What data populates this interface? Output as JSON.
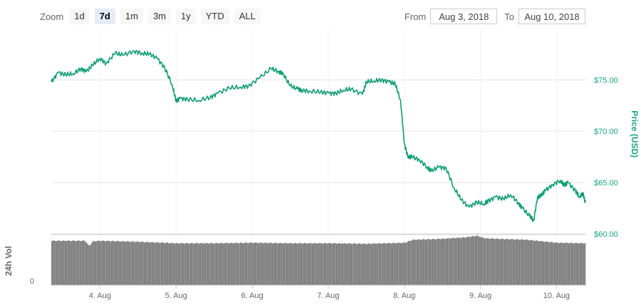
{
  "range_selector": {
    "zoom_label": "Zoom",
    "buttons": [
      "1d",
      "7d",
      "1m",
      "3m",
      "1y",
      "YTD",
      "ALL"
    ],
    "active": "7d",
    "from_label": "From",
    "from_value": "Aug 3, 2018",
    "to_label": "To",
    "to_value": "Aug 10, 2018"
  },
  "colors": {
    "line": "#0f9d74",
    "volume": "#7c7c7c",
    "grid": "#e6e6e6",
    "price_axis": "#1aa580"
  },
  "chart_data": {
    "type": "line",
    "x_unit": "date (days in August 2018)",
    "xlim": [
      3.36,
      10.38
    ],
    "x_tick_values": [
      4,
      5,
      6,
      7,
      8,
      9,
      10
    ],
    "x_tick_labels": [
      "4. Aug",
      "5. Aug",
      "6. Aug",
      "7. Aug",
      "8. Aug",
      "9. Aug",
      "10. Aug"
    ],
    "price": {
      "ylabel": "Price (USD)",
      "ylim": [
        60,
        80
      ],
      "y_ticks": [
        60,
        65,
        70,
        75
      ],
      "y_tick_labels": [
        "$60.00",
        "$65.00",
        "$70.00",
        "$75.00"
      ],
      "x": [
        3.36,
        3.45,
        3.55,
        3.65,
        3.75,
        3.82,
        3.9,
        4.0,
        4.08,
        4.2,
        4.3,
        4.45,
        4.55,
        4.65,
        4.75,
        4.85,
        4.95,
        5.0,
        5.05,
        5.15,
        5.3,
        5.45,
        5.55,
        5.7,
        5.85,
        5.95,
        6.1,
        6.25,
        6.35,
        6.4,
        6.5,
        6.6,
        6.65,
        6.75,
        6.9,
        7.0,
        7.1,
        7.2,
        7.3,
        7.45,
        7.5,
        7.6,
        7.7,
        7.8,
        7.88,
        7.95,
        8.0,
        8.05,
        8.1,
        8.2,
        8.3,
        8.35,
        8.45,
        8.55,
        8.65,
        8.75,
        8.85,
        8.95,
        9.05,
        9.1,
        9.2,
        9.3,
        9.4,
        9.5,
        9.55,
        9.65,
        9.7,
        9.75,
        9.8,
        9.85,
        9.95,
        10.05,
        10.1,
        10.15,
        10.25,
        10.3,
        10.35,
        10.38
      ],
      "y": [
        74.8,
        75.7,
        75.5,
        75.6,
        76.1,
        75.8,
        76.4,
        77.1,
        76.6,
        77.6,
        77.4,
        77.8,
        77.6,
        77.5,
        77.1,
        76.2,
        74.5,
        72.9,
        73.2,
        73.1,
        73.0,
        73.3,
        73.7,
        74.2,
        74.3,
        74.4,
        75.2,
        76.1,
        75.8,
        75.7,
        74.4,
        74.1,
        74.0,
        73.9,
        73.8,
        73.7,
        73.7,
        74.0,
        74.1,
        73.6,
        74.8,
        74.9,
        75.0,
        74.8,
        74.6,
        73.0,
        68.8,
        67.4,
        67.5,
        67.2,
        66.5,
        66.1,
        66.5,
        66.4,
        64.5,
        63.3,
        62.6,
        63.1,
        62.9,
        63.2,
        63.6,
        63.4,
        63.8,
        63.0,
        62.5,
        61.7,
        61.3,
        63.6,
        63.7,
        64.2,
        64.8,
        65.2,
        64.7,
        65.0,
        64.2,
        63.6,
        63.9,
        63.0
      ]
    },
    "volume": {
      "ylabel": "24h Vol",
      "y_tick_labels": [
        "0"
      ],
      "x": [
        3.36,
        3.8,
        3.85,
        3.9,
        4.0,
        4.5,
        5.0,
        5.5,
        6.0,
        6.5,
        7.0,
        7.5,
        8.0,
        8.1,
        8.5,
        8.8,
        8.95,
        9.05,
        9.2,
        9.6,
        10.0,
        10.38
      ],
      "values": [
        0.89,
        0.89,
        0.78,
        0.88,
        0.89,
        0.87,
        0.84,
        0.84,
        0.85,
        0.84,
        0.84,
        0.83,
        0.85,
        0.91,
        0.93,
        0.96,
        0.99,
        0.94,
        0.93,
        0.91,
        0.85,
        0.84
      ]
    }
  }
}
